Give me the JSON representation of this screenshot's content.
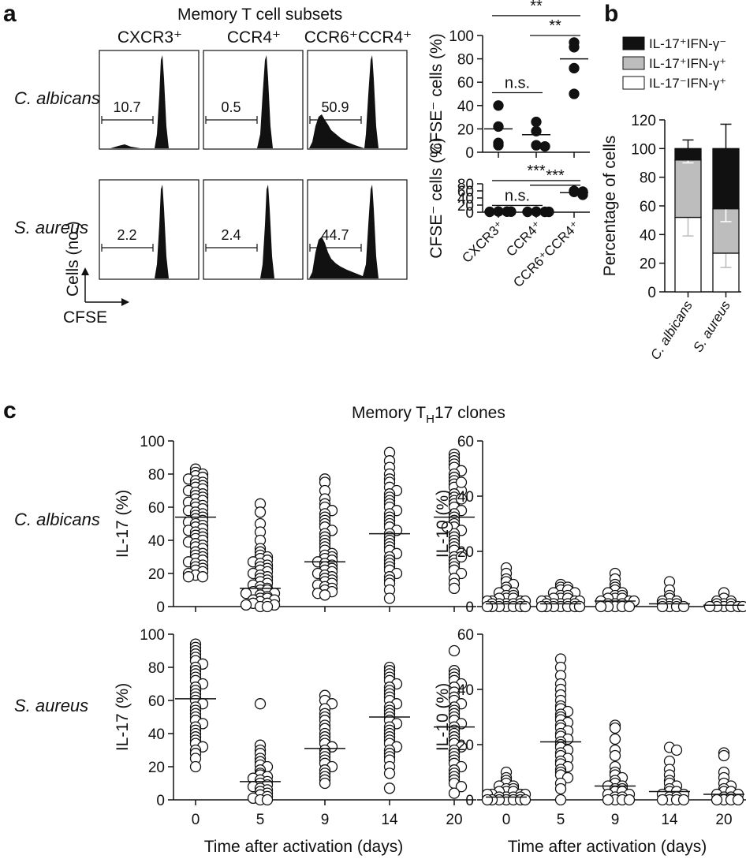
{
  "panel_letters": {
    "a": "a",
    "b": "b",
    "c": "c"
  },
  "panel_a": {
    "title": "Memory T cell subsets",
    "column_headers": [
      "CXCR3⁺",
      "CCR4⁺",
      "CCR6⁺CCR4⁺"
    ],
    "row_labels": [
      "C. albicans",
      "S. aureus"
    ],
    "histogram_gates": [
      [
        "10.7",
        "0.5",
        "50.9"
      ],
      [
        "2.2",
        "2.4",
        "44.7"
      ]
    ],
    "axes_key": {
      "y_label": "Cells (no.)",
      "x_label": "CFSE"
    }
  },
  "panel_b_legend": [
    "IL-17⁺IFN-γ⁻",
    "IL-17⁺IFN-γ⁺",
    "IL-17⁻IFN-γ⁺"
  ],
  "panel_c_title": {
    "main": "Memory T",
    "subscript": "H",
    "suffix": "17 clones"
  },
  "chart_data": [
    {
      "id": "a-scatter-calbicans",
      "type": "scatter",
      "ylabel": "CFSE⁻ cells (%)",
      "ylim": [
        0,
        100
      ],
      "yticks": [
        0,
        20,
        40,
        60,
        80,
        100
      ],
      "categories": [
        "CXCR3⁺",
        "CCR4⁺",
        "CCR6⁺CCR4⁺"
      ],
      "points": [
        [
          40,
          22,
          8,
          6
        ],
        [
          26,
          18,
          6,
          5
        ],
        [
          94,
          90,
          72,
          50
        ]
      ],
      "medians": [
        20,
        15,
        80
      ],
      "significance": [
        {
          "from": 0,
          "to": 1,
          "label": "n.s.",
          "y": 51
        },
        {
          "from": 1,
          "to": 2,
          "label": "**",
          "y": 100
        },
        {
          "from": 0,
          "to": 2,
          "label": "**",
          "y": 117
        }
      ]
    },
    {
      "id": "a-scatter-saureus",
      "type": "scatter",
      "ylabel": "CFSE⁻ cells (%)",
      "ylim": [
        0,
        80
      ],
      "yticks": [
        0,
        20,
        40,
        60,
        80
      ],
      "categories": [
        "CXCR3⁺",
        "CCR4⁺",
        "CCR6⁺CCR4⁺"
      ],
      "points": [
        [
          2,
          1.5,
          1,
          1.5
        ],
        [
          1.5,
          1,
          1,
          1
        ],
        [
          60,
          58,
          57,
          49
        ]
      ],
      "medians": [
        1.5,
        1,
        55
      ],
      "significance": [
        {
          "from": 0,
          "to": 1,
          "label": "n.s.",
          "y": 19
        },
        {
          "from": 1,
          "to": 2,
          "label": "***",
          "y": 76
        },
        {
          "from": 0,
          "to": 2,
          "label": "***",
          "y": 89
        }
      ]
    },
    {
      "id": "b-stacked-bar",
      "type": "bar",
      "ylabel": "Percentage of cells",
      "ylim": [
        0,
        120
      ],
      "yticks": [
        0,
        20,
        40,
        60,
        80,
        100,
        120
      ],
      "categories": [
        "C. albicans",
        "S. aureus"
      ],
      "series": [
        {
          "name": "IL-17⁻IFN-γ⁺",
          "color": "#ffffff",
          "values": [
            52,
            27
          ],
          "errors": [
            13,
            10
          ]
        },
        {
          "name": "IL-17⁺IFN-γ⁺",
          "color": "#bdbdbd",
          "values": [
            40,
            31
          ],
          "errors": [
            2,
            9
          ]
        },
        {
          "name": "IL-17⁺IFN-γ⁻",
          "color": "#111111",
          "values": [
            8,
            42
          ],
          "errors": [
            6,
            17
          ]
        }
      ]
    },
    {
      "id": "c-il17-calbicans",
      "type": "scatter",
      "ylabel": "IL-17 (%)",
      "ylim": [
        0,
        100
      ],
      "yticks": [
        0,
        20,
        40,
        60,
        80,
        100
      ],
      "categories": [
        "0",
        "5",
        "9",
        "14",
        "20"
      ],
      "medians": [
        54,
        11,
        27,
        44,
        54
      ],
      "points": [
        [
          83,
          81,
          80,
          79,
          78,
          77,
          76,
          75,
          74,
          73,
          72,
          71,
          70,
          69,
          68,
          67,
          66,
          65,
          64,
          63,
          62,
          61,
          60,
          59,
          58,
          57,
          56,
          55,
          54,
          53,
          52,
          51,
          50,
          49,
          48,
          47,
          46,
          45,
          44,
          43,
          42,
          41,
          40,
          39,
          38,
          37,
          36,
          35,
          33,
          32,
          31,
          30,
          29,
          28,
          27,
          26,
          25,
          24,
          23,
          22,
          21,
          20,
          19,
          18,
          18
        ],
        [
          62,
          57,
          50,
          45,
          40,
          35,
          33,
          31,
          30,
          29,
          28,
          27,
          26,
          25,
          24,
          23,
          22,
          21,
          20,
          19,
          18,
          17,
          16,
          15,
          14,
          13,
          12,
          11,
          10,
          10,
          9,
          8,
          8,
          7,
          6,
          5,
          5,
          4,
          4,
          3,
          2,
          2,
          1,
          1,
          0,
          0
        ],
        [
          77,
          75,
          70,
          65,
          62,
          60,
          58,
          56,
          54,
          52,
          50,
          48,
          46,
          44,
          42,
          40,
          38,
          36,
          34,
          32,
          31,
          30,
          29,
          28,
          27,
          26,
          25,
          24,
          23,
          22,
          21,
          20,
          19,
          18,
          17,
          16,
          15,
          14,
          13,
          12,
          11,
          10,
          9,
          8,
          7
        ],
        [
          93,
          88,
          84,
          80,
          77,
          75,
          72,
          70,
          68,
          66,
          64,
          62,
          60,
          58,
          56,
          54,
          52,
          50,
          48,
          46,
          44,
          42,
          40,
          38,
          36,
          34,
          32,
          30,
          28,
          26,
          24,
          22,
          20,
          18,
          16,
          14,
          10,
          5
        ],
        [
          92,
          90,
          88,
          86,
          84,
          82,
          80,
          78,
          76,
          74,
          72,
          70,
          68,
          66,
          64,
          62,
          60,
          58,
          56,
          54,
          52,
          50,
          48,
          46,
          44,
          42,
          40,
          38,
          36,
          34,
          32,
          30,
          28,
          26,
          24,
          22,
          20,
          17,
          14,
          11,
          30,
          48,
          65,
          75
        ]
      ]
    },
    {
      "id": "c-il10-calbicans",
      "type": "scatter",
      "ylabel": "IL-10 (%)",
      "ylim": [
        0,
        60
      ],
      "yticks": [
        0,
        20,
        40,
        60
      ],
      "categories": [
        "0",
        "5",
        "9",
        "14",
        "20"
      ],
      "medians": [
        1,
        1,
        2,
        1,
        0.5
      ],
      "points": [
        [
          14,
          12,
          10,
          9,
          8,
          7,
          6,
          5,
          5,
          4,
          4,
          3,
          3,
          3,
          2,
          2,
          2,
          2,
          1,
          1,
          1,
          1,
          1,
          0,
          0,
          0,
          0,
          0,
          0,
          0,
          0
        ],
        [
          8,
          7,
          7,
          6,
          6,
          5,
          5,
          4,
          4,
          3,
          3,
          3,
          2,
          2,
          2,
          2,
          1,
          1,
          1,
          1,
          1,
          0,
          0,
          0,
          0,
          0,
          0,
          0,
          0,
          0
        ],
        [
          12,
          10,
          8,
          7,
          6,
          5,
          5,
          4,
          4,
          3,
          3,
          3,
          2,
          2,
          2,
          1,
          1,
          1,
          0,
          0,
          0,
          0,
          0
        ],
        [
          9,
          6,
          4,
          3,
          2,
          2,
          1,
          1,
          1,
          0,
          0,
          0,
          0
        ],
        [
          5,
          3,
          2,
          2,
          1,
          1,
          1,
          0,
          0,
          0,
          0,
          0,
          0
        ]
      ]
    },
    {
      "id": "c-il17-saureus",
      "type": "scatter",
      "ylabel": "IL-17 (%)",
      "ylim": [
        0,
        100
      ],
      "yticks": [
        0,
        20,
        40,
        60,
        80,
        100
      ],
      "categories": [
        "0",
        "5",
        "9",
        "14",
        "20"
      ],
      "medians": [
        61,
        11,
        31,
        50,
        44
      ],
      "points": [
        [
          94,
          92,
          90,
          88,
          86,
          84,
          82,
          80,
          78,
          76,
          74,
          72,
          70,
          68,
          66,
          64,
          62,
          60,
          58,
          56,
          54,
          52,
          50,
          48,
          46,
          44,
          42,
          40,
          38,
          36,
          34,
          32,
          30,
          28,
          25,
          20
        ],
        [
          58,
          33,
          30,
          28,
          25,
          23,
          21,
          20,
          18,
          16,
          15,
          14,
          13,
          12,
          11,
          10,
          9,
          8,
          7,
          6,
          5,
          4,
          3,
          2,
          1,
          0,
          0
        ],
        [
          63,
          60,
          58,
          55,
          52,
          50,
          48,
          45,
          43,
          40,
          38,
          36,
          34,
          32,
          30,
          28,
          26,
          24,
          22,
          20,
          18,
          16,
          14,
          12,
          10
        ],
        [
          80,
          78,
          76,
          74,
          72,
          70,
          68,
          66,
          64,
          62,
          60,
          58,
          56,
          54,
          52,
          50,
          48,
          46,
          44,
          42,
          40,
          38,
          36,
          34,
          32,
          30,
          28,
          26,
          24,
          20,
          16,
          7
        ],
        [
          90,
          78,
          76,
          74,
          72,
          70,
          68,
          65,
          62,
          60,
          58,
          56,
          54,
          52,
          50,
          48,
          46,
          44,
          42,
          40,
          38,
          36,
          34,
          32,
          30,
          28,
          26,
          24,
          22,
          20,
          18,
          16,
          14,
          12,
          10,
          8,
          4
        ]
      ]
    },
    {
      "id": "c-il10-saureus",
      "type": "scatter",
      "ylabel": "IL-10 (%)",
      "ylim": [
        0,
        60
      ],
      "yticks": [
        0,
        20,
        40,
        60
      ],
      "categories": [
        "0",
        "5",
        "9",
        "14",
        "20"
      ],
      "medians": [
        1,
        21,
        5,
        3,
        2
      ],
      "points": [
        [
          10,
          8,
          7,
          6,
          5,
          5,
          4,
          4,
          3,
          3,
          3,
          2,
          2,
          2,
          2,
          1,
          1,
          1,
          1,
          0,
          0,
          0,
          0,
          0,
          0,
          0
        ],
        [
          51,
          48,
          45,
          42,
          40,
          38,
          36,
          34,
          33,
          32,
          31,
          30,
          29,
          28,
          27,
          26,
          25,
          24,
          23,
          22,
          21,
          20,
          19,
          18,
          17,
          16,
          15,
          14,
          13,
          12,
          11,
          10,
          9,
          8,
          6,
          4,
          0
        ],
        [
          27,
          26,
          22,
          18,
          16,
          12,
          10,
          9,
          8,
          7,
          6,
          5,
          5,
          4,
          4,
          3,
          3,
          2,
          2,
          1,
          1,
          0,
          0,
          0,
          0
        ],
        [
          19,
          18,
          14,
          11,
          9,
          7,
          6,
          5,
          4,
          3,
          3,
          2,
          2,
          1,
          1,
          0,
          0,
          0,
          0
        ],
        [
          17,
          16,
          10,
          8,
          6,
          5,
          4,
          3,
          3,
          2,
          2,
          1,
          1,
          0,
          0,
          0,
          0
        ]
      ]
    }
  ],
  "x_axis_label": "Time after activation (days)"
}
